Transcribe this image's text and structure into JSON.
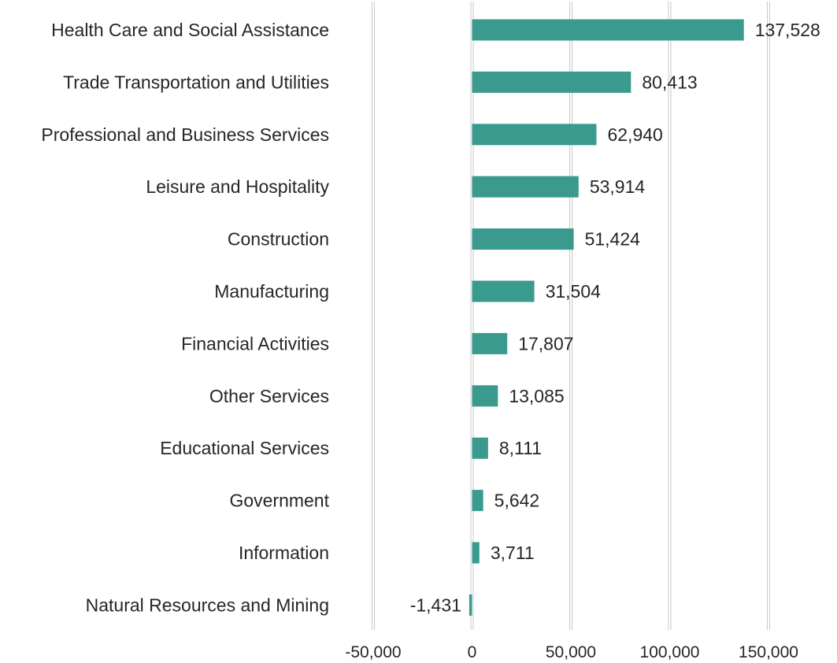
{
  "chart_data": {
    "type": "bar",
    "orientation": "horizontal",
    "categories": [
      "Health Care and Social Assistance",
      "Trade Transportation and Utilities",
      "Professional and Business Services",
      "Leisure and Hospitality",
      "Construction",
      "Manufacturing",
      "Financial Activities",
      "Other Services",
      "Educational Services",
      "Government",
      "Information",
      "Natural Resources and Mining"
    ],
    "values": [
      137528,
      80413,
      62940,
      53914,
      51424,
      31504,
      17807,
      13085,
      8111,
      5642,
      3711,
      -1431
    ],
    "data_labels": [
      "137,528",
      "80,413",
      "62,940",
      "53,914",
      "51,424",
      "31,504",
      "17,807",
      "13,085",
      "8,111",
      "5,642",
      "3,711",
      "-1,431"
    ],
    "x_ticks": [
      -50000,
      0,
      50000,
      100000,
      150000
    ],
    "x_tick_labels": [
      "-50,000",
      "0",
      "50,000",
      "100,000",
      "150,000"
    ],
    "xlim": [
      -50000,
      150000
    ],
    "title": "",
    "xlabel": "",
    "ylabel": "",
    "grid": "vertical",
    "legend": "none",
    "bar_color": "#3A9A8E",
    "grid_color": "#C8C8C8"
  }
}
